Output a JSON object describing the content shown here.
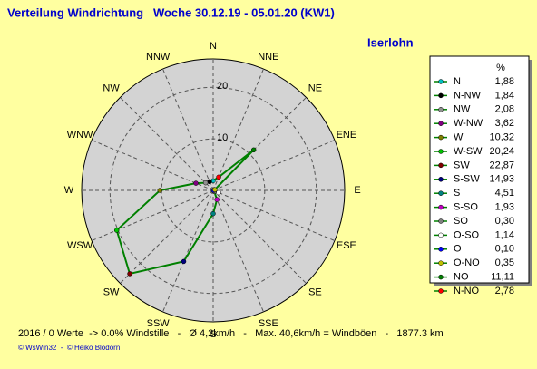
{
  "chart_data": {
    "type": "radar",
    "title": "Verteilung Windrichtung   Woche 30.12.19 - 05.01.20 (KW1)",
    "subtitle": "Iserlohn",
    "categories": [
      "N",
      "N-NW",
      "NW",
      "W-NW",
      "W",
      "W-SW",
      "SW",
      "S-SW",
      "S",
      "S-SO",
      "SO",
      "O-SO",
      "O",
      "O-NO",
      "NO",
      "N-NO"
    ],
    "direction_labels": [
      "N",
      "NNW",
      "NW",
      "WNW",
      "W",
      "WSW",
      "SW",
      "SSW",
      "S",
      "SSE",
      "SE",
      "ESE",
      "E",
      "ENE",
      "NE",
      "NNE"
    ],
    "values": [
      1.88,
      1.84,
      2.08,
      3.62,
      10.32,
      20.24,
      22.87,
      14.93,
      4.51,
      1.93,
      0.3,
      1.14,
      0.1,
      0.35,
      11.11,
      2.78
    ],
    "value_labels": [
      "1,88",
      "1,84",
      "2,08",
      "3,62",
      "10,32",
      "20,24",
      "22,87",
      "14,93",
      "4,51",
      "1,93",
      "0,30",
      "1,14",
      "0,10",
      "0,35",
      "11,11",
      "2,78"
    ],
    "colors": [
      "#00c0c0",
      "#000000",
      "#909090",
      "#800080",
      "#808000",
      "#00c000",
      "#800000",
      "#000080",
      "#008080",
      "#c000c0",
      "#808080",
      "#ffffff",
      "#0000ff",
      "#c0c000",
      "#008000",
      "#ff0000"
    ],
    "line_color": "#008000",
    "legend_header": "%",
    "rlim": [
      0,
      25.5
    ],
    "rticks": [
      10,
      20
    ],
    "footer": "2016 / 0 Werte  -> 0.0% Windstille   -   Ø 4,2km/h   -   Max. 40,6km/h = Windböen   -   1877.3 km",
    "credits": "© WsWin32  -  © Heiko Blödorn"
  }
}
